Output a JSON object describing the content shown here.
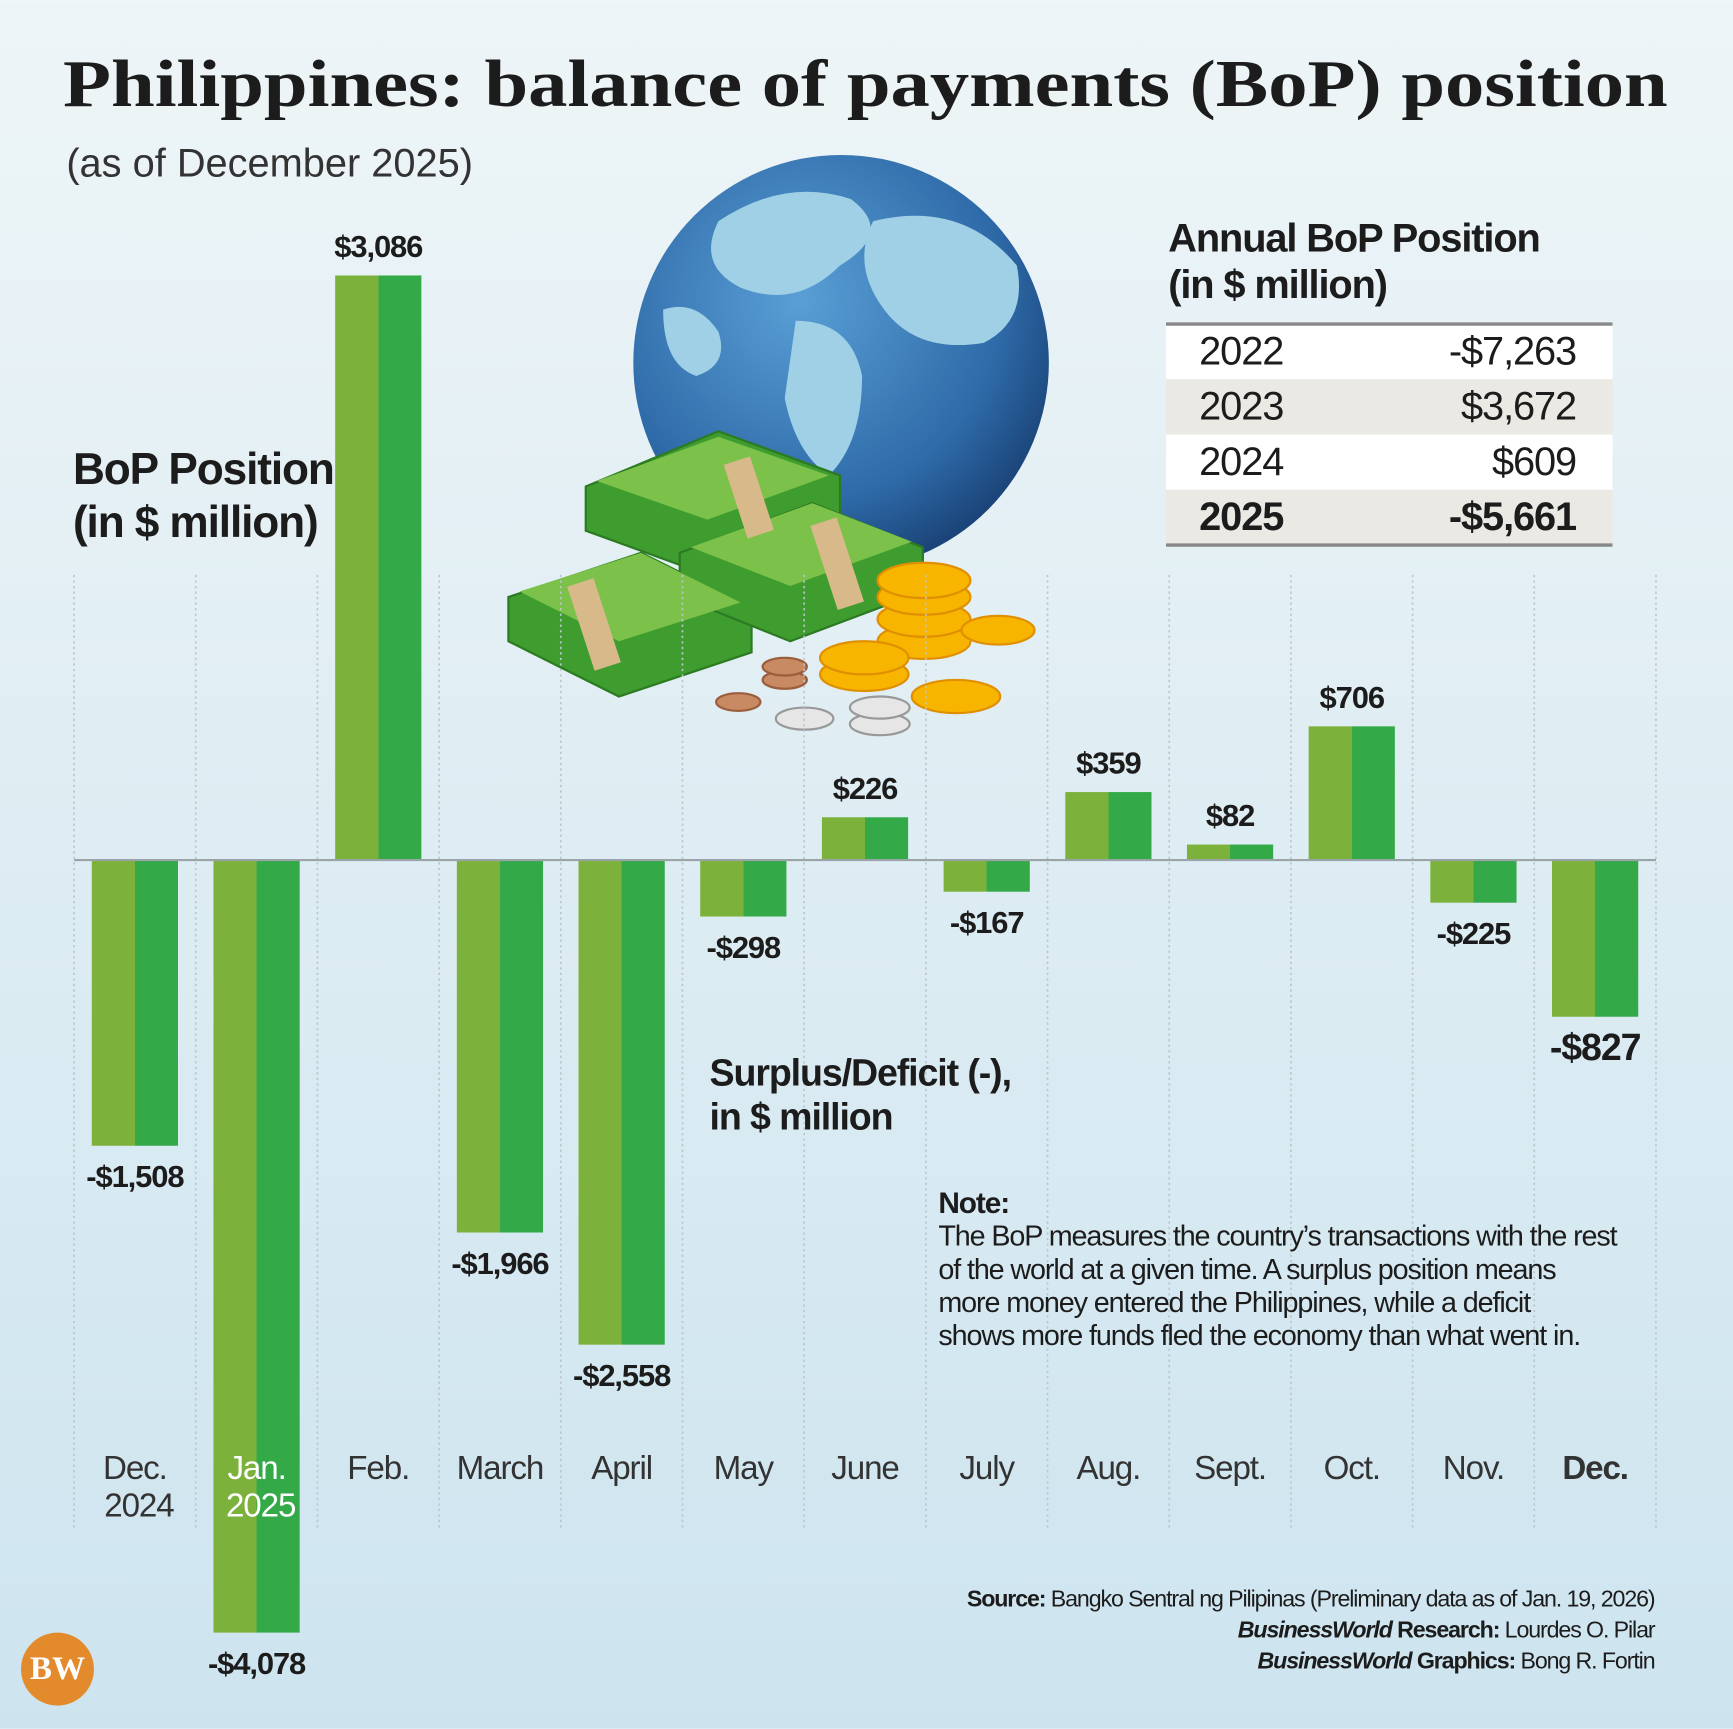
{
  "title": "Philippines: balance of payments (BoP) position",
  "subtitle": "(as of December 2025)",
  "chart_data": {
    "type": "bar",
    "axis_title": [
      "BoP Position",
      "(in $ million)"
    ],
    "legend_note": [
      "Surplus/Deficit (-),",
      "in $ million"
    ],
    "categories": [
      "Dec. 2024",
      "Jan. 2025",
      "Feb.",
      "March",
      "April",
      "May",
      "June",
      "July",
      "Aug.",
      "Sept.",
      "Oct.",
      "Nov.",
      "Dec."
    ],
    "values": [
      -1508,
      -4078,
      3086,
      -1966,
      -2558,
      -298,
      226,
      -167,
      359,
      82,
      706,
      -225,
      -827
    ],
    "value_labels": [
      "-$1,508",
      "-$4,078",
      "$3,086",
      "-$1,966",
      "-$2,558",
      "-$298",
      "$226",
      "-$167",
      "$359",
      "$82",
      "$706",
      "-$225",
      "-$827"
    ],
    "colors": [
      "#7cb23b",
      "#33a948"
    ]
  },
  "annual_table": {
    "title": [
      "Annual BoP Position",
      "(in $ million)"
    ],
    "rows": [
      [
        "2022",
        "-$7,263"
      ],
      [
        "2023",
        "$3,672"
      ],
      [
        "2024",
        "$609"
      ],
      [
        "2025",
        "-$5,661"
      ]
    ]
  },
  "note": {
    "label": "Note:",
    "lines": [
      "The BoP measures the country’s transactions with the rest",
      "of the world at a given time. A surplus position means",
      "more money entered the Philippines, while a deficit",
      "shows more funds fled the economy than what went in."
    ]
  },
  "credits": [
    {
      "label": "Source:",
      "text": " Bangko Sentral ng Pilipinas (Preliminary data as of Jan. 19, 2026)"
    },
    {
      "label_italic": "BusinessWorld",
      "label": " Research:",
      "text": " Lourdes O. Pilar"
    },
    {
      "label_italic": "BusinessWorld",
      "label": " Graphics:",
      "text": " Bong R. Fortin"
    }
  ],
  "logo": "BW"
}
